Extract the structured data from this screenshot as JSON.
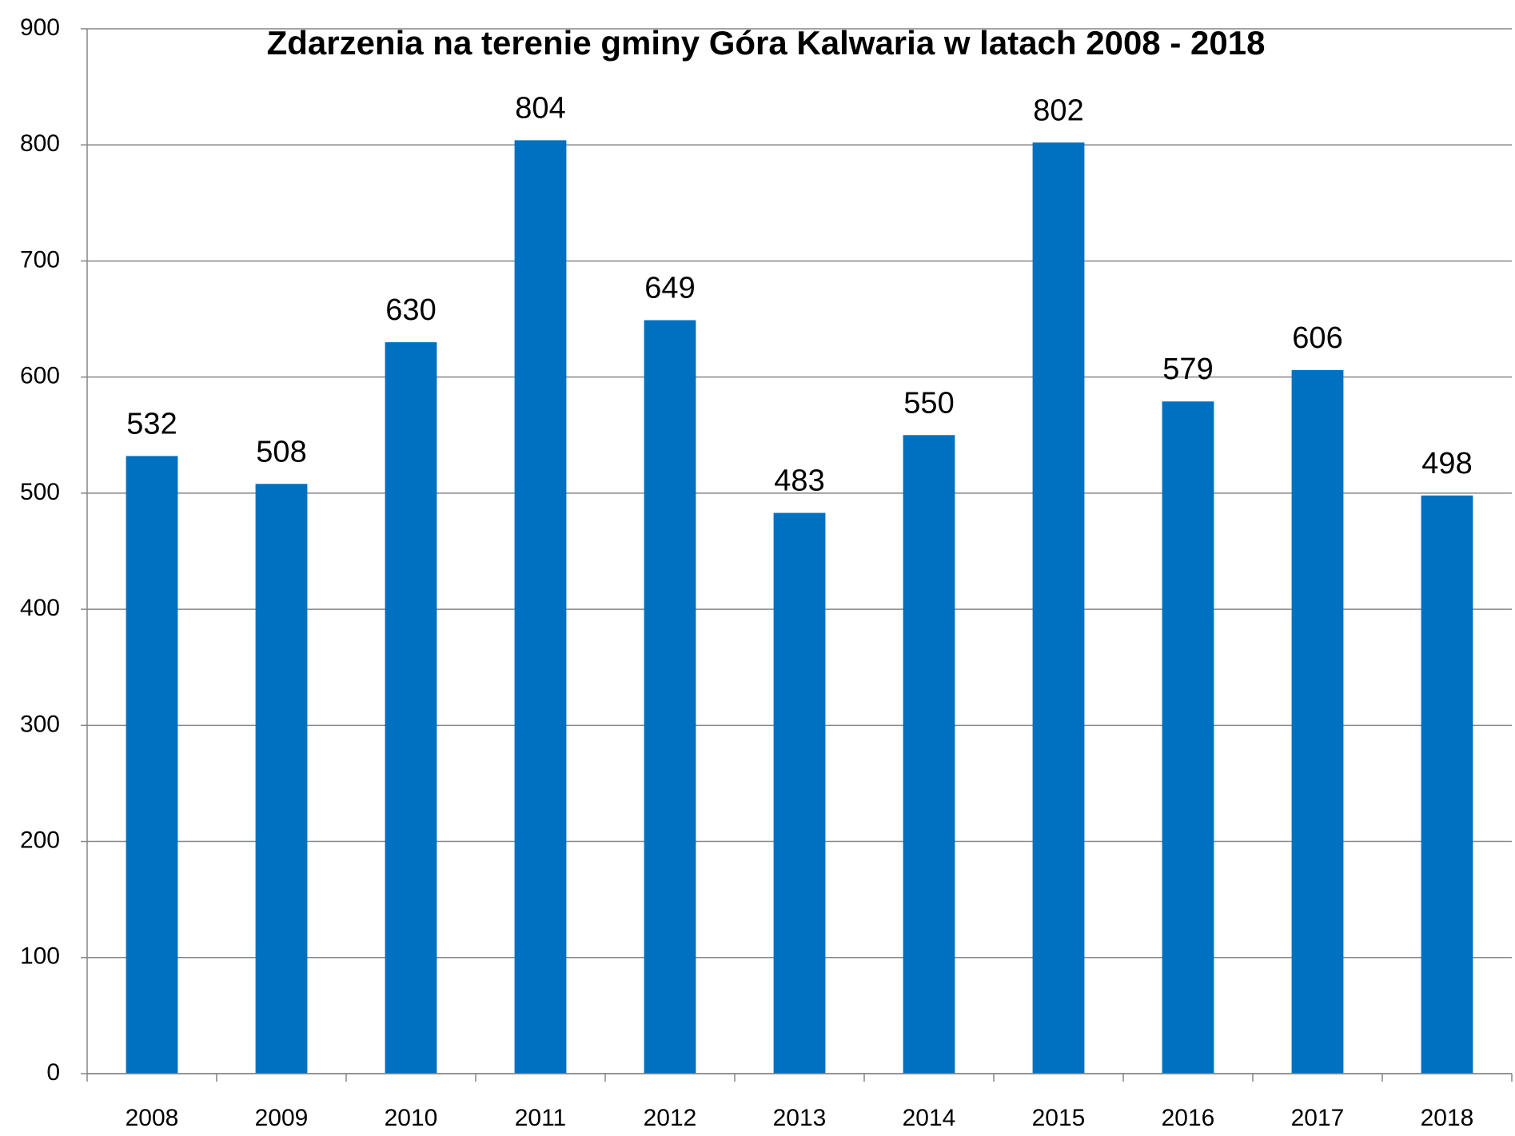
{
  "chart_data": {
    "type": "bar",
    "title": "Zdarzenia na terenie gminy Góra Kalwaria w latach 2008 - 2018",
    "categories": [
      "2008",
      "2009",
      "2010",
      "2011",
      "2012",
      "2013",
      "2014",
      "2015",
      "2016",
      "2017",
      "2018"
    ],
    "values": [
      532,
      508,
      630,
      804,
      649,
      483,
      550,
      802,
      579,
      606,
      498
    ],
    "color": "#0070c0",
    "ylim": [
      0,
      900
    ],
    "yticks": [
      0,
      100,
      200,
      300,
      400,
      500,
      600,
      700,
      800,
      900
    ],
    "grid": true
  }
}
